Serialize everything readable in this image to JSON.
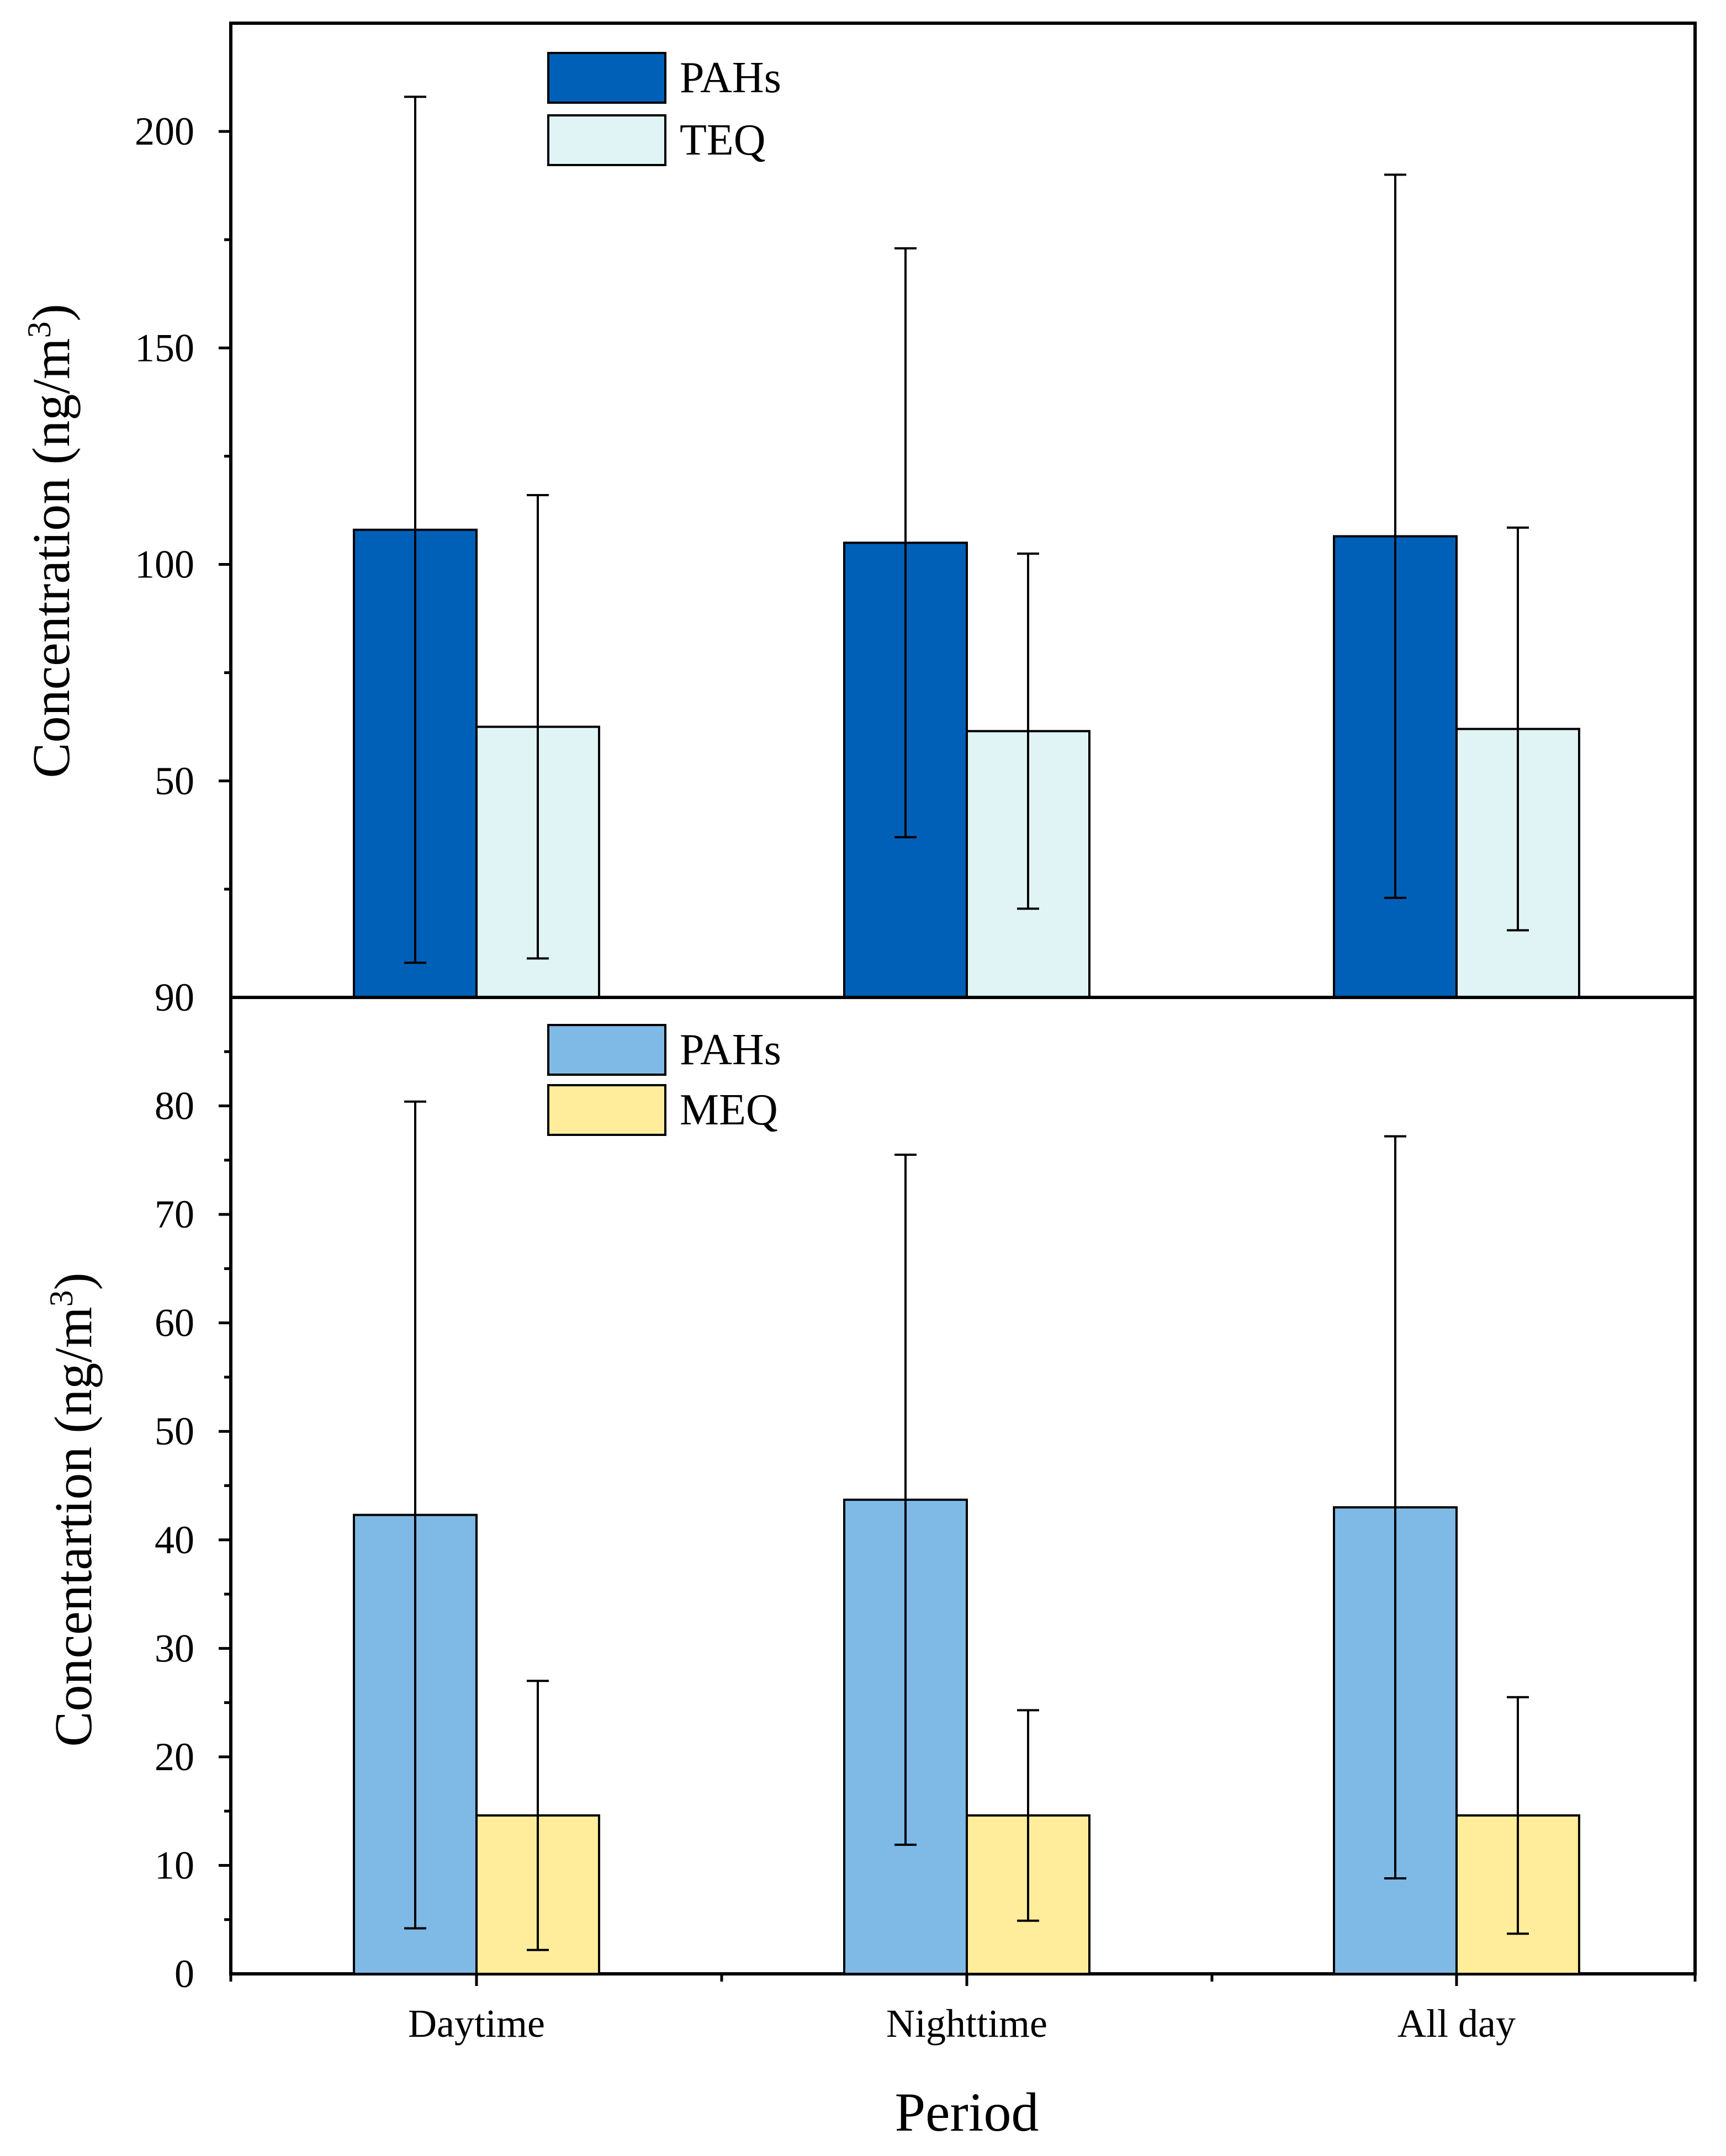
{
  "chart_data": [
    {
      "type": "bar",
      "panel": "top",
      "categories": [
        "Daytime",
        "Nighttime",
        "All day"
      ],
      "series": [
        {
          "name": "PAHs",
          "values": [
            108,
            105,
            106.5
          ],
          "errors": [
            100,
            68,
            83.5
          ],
          "color": "#0060B8"
        },
        {
          "name": "TEQ",
          "values": [
            62.5,
            61.5,
            62
          ],
          "errors": [
            53.5,
            41,
            46.5
          ],
          "color": "#E0F4F5"
        }
      ],
      "ylabel": "Concentration (ng/m3)",
      "ylabel_main": "Concentration",
      "ylabel_unit_open": "(ng/m",
      "ylabel_unit_sup": "3",
      "ylabel_unit_close": ")",
      "ylim": [
        0,
        225
      ],
      "yticks": [
        50,
        100,
        150,
        200
      ],
      "ytick_labels": [
        "50",
        "100",
        "150",
        "200"
      ],
      "legend": "top-center",
      "grid": false
    },
    {
      "type": "bar",
      "panel": "bottom",
      "categories": [
        "Daytime",
        "Nighttime",
        "All day"
      ],
      "series": [
        {
          "name": "PAHs",
          "values": [
            42.3,
            43.7,
            43
          ],
          "errors": [
            38.1,
            31.8,
            34.2
          ],
          "color": "#7FB9E5"
        },
        {
          "name": "MEQ",
          "values": [
            14.6,
            14.6,
            14.6
          ],
          "errors": [
            12.4,
            9.7,
            10.9
          ],
          "color": "#FFED9B"
        }
      ],
      "ylabel": "Concentartion (ng/m3)",
      "ylabel_main": "Concentartion",
      "ylabel_unit_open": "(ng/m",
      "ylabel_unit_sup": "3",
      "ylabel_unit_close": ")",
      "ylim": [
        0,
        90
      ],
      "yticks": [
        0,
        10,
        20,
        30,
        40,
        50,
        60,
        70,
        80,
        90
      ],
      "ytick_labels": [
        "0",
        "10",
        "20",
        "30",
        "40",
        "50",
        "60",
        "70",
        "80",
        "90"
      ],
      "xlabel": "Period",
      "legend": "top-center",
      "grid": false
    }
  ]
}
